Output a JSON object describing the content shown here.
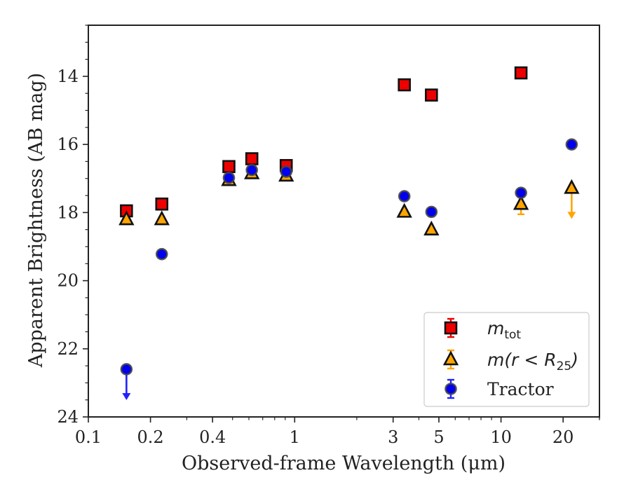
{
  "chart_data": {
    "type": "scatter",
    "xlabel": "Observed-frame Wavelength (μm)",
    "ylabel": "Apparent Brightness (AB mag)",
    "x_scale": "log",
    "xlim": [
      0.1,
      30
    ],
    "ylim": [
      24,
      12.5
    ],
    "y_inverted": true,
    "x_ticks": [
      {
        "value": 0.1,
        "label": "0.1"
      },
      {
        "value": 0.2,
        "label": "0.2"
      },
      {
        "value": 0.4,
        "label": "0.4"
      },
      {
        "value": 1,
        "label": "1"
      },
      {
        "value": 3,
        "label": "3"
      },
      {
        "value": 5,
        "label": "5"
      },
      {
        "value": 10,
        "label": "10"
      },
      {
        "value": 20,
        "label": "20"
      }
    ],
    "y_ticks": [
      {
        "value": 14,
        "label": "14"
      },
      {
        "value": 16,
        "label": "16"
      },
      {
        "value": 18,
        "label": "18"
      },
      {
        "value": 20,
        "label": "20"
      },
      {
        "value": 22,
        "label": "22"
      },
      {
        "value": 24,
        "label": "24"
      }
    ],
    "grid": false,
    "legend_position": "lower-right",
    "series": [
      {
        "name": "m_tot",
        "legend_main": "m",
        "legend_sub": "tot",
        "marker": "square",
        "color": "#ee0000",
        "edge_color": "#111111",
        "points": [
          {
            "x": 0.153,
            "y": 17.95
          },
          {
            "x": 0.227,
            "y": 17.75
          },
          {
            "x": 0.48,
            "y": 16.65
          },
          {
            "x": 0.62,
            "y": 16.42
          },
          {
            "x": 0.91,
            "y": 16.62
          },
          {
            "x": 3.4,
            "y": 14.25
          },
          {
            "x": 4.6,
            "y": 14.55
          },
          {
            "x": 12.5,
            "y": 13.9
          }
        ]
      },
      {
        "name": "m(r < R_25)",
        "legend_main": "m(r < R",
        "legend_sub": "25",
        "legend_tail": ")",
        "marker": "triangle",
        "color": "#ffa500",
        "edge_color": "#111111",
        "points": [
          {
            "x": 0.153,
            "y": 18.2
          },
          {
            "x": 0.227,
            "y": 18.2
          },
          {
            "x": 0.48,
            "y": 17.05
          },
          {
            "x": 0.62,
            "y": 16.85
          },
          {
            "x": 0.91,
            "y": 16.92
          },
          {
            "x": 3.4,
            "y": 17.98
          },
          {
            "x": 4.6,
            "y": 18.5
          },
          {
            "x": 12.5,
            "y": 17.75,
            "err_down": 0.3
          },
          {
            "x": 22.0,
            "y": 17.28,
            "upper_limit": true
          }
        ]
      },
      {
        "name": "Tractor",
        "legend_main": "Tractor",
        "marker": "circle",
        "color": "#0000ee",
        "edge_color": "#444444",
        "points": [
          {
            "x": 0.153,
            "y": 22.6,
            "upper_limit": true
          },
          {
            "x": 0.227,
            "y": 19.22
          },
          {
            "x": 0.48,
            "y": 16.98
          },
          {
            "x": 0.62,
            "y": 16.75
          },
          {
            "x": 0.91,
            "y": 16.8
          },
          {
            "x": 3.4,
            "y": 17.52
          },
          {
            "x": 4.6,
            "y": 17.98
          },
          {
            "x": 12.5,
            "y": 17.42
          },
          {
            "x": 22.0,
            "y": 16.0
          }
        ]
      }
    ]
  }
}
